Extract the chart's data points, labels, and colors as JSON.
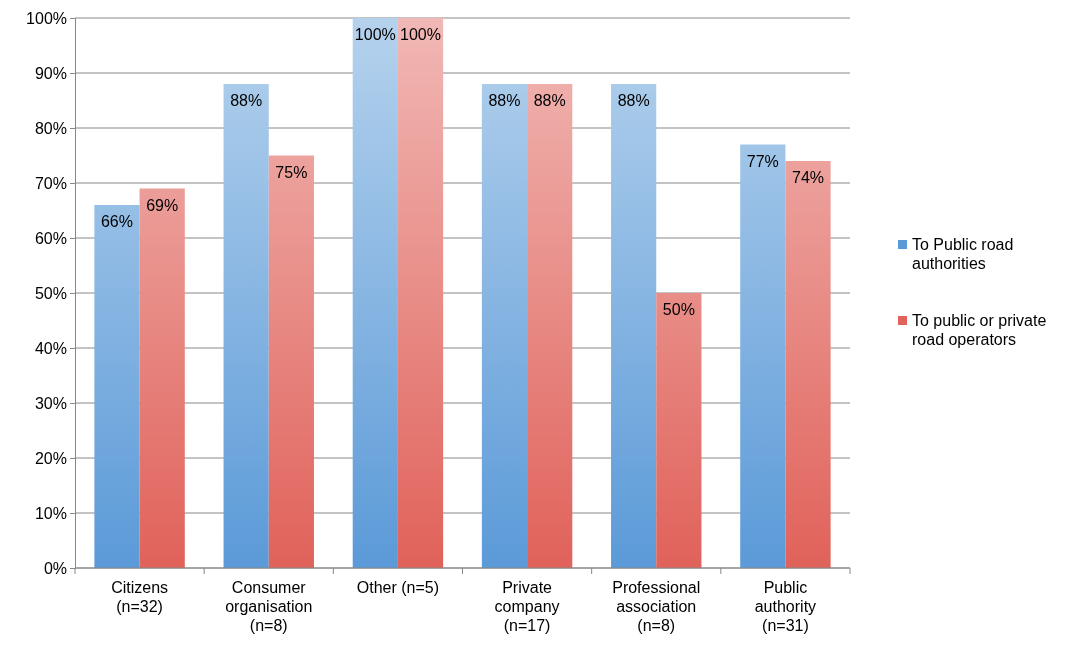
{
  "chart_data": {
    "type": "bar",
    "categories": [
      "Citizens (n=32)",
      "Consumer organisation (n=8)",
      "Other (n=5)",
      "Private company (n=17)",
      "Professional association (n=8)",
      "Public authority (n=31)"
    ],
    "series": [
      {
        "name": "To Public road authorities",
        "color": "#5b9ad8",
        "values": [
          66,
          88,
          100,
          88,
          88,
          77
        ],
        "value_labels": [
          "66%",
          "88%",
          "100%",
          "88%",
          "88%",
          "77%"
        ]
      },
      {
        "name": "To public or private road operators",
        "color": "#e0625a",
        "values": [
          69,
          75,
          100,
          88,
          50,
          74
        ],
        "value_labels": [
          "69%",
          "75%",
          "100%",
          "88%",
          "50%",
          "74%"
        ]
      }
    ],
    "ylim": [
      0,
      100
    ],
    "yticks": [
      {
        "value": 0,
        "label": "0%"
      },
      {
        "value": 10,
        "label": "10%"
      },
      {
        "value": 20,
        "label": "20%"
      },
      {
        "value": 30,
        "label": "30%"
      },
      {
        "value": 40,
        "label": "40%"
      },
      {
        "value": 50,
        "label": "50%"
      },
      {
        "value": 60,
        "label": "60%"
      },
      {
        "value": 70,
        "label": "70%"
      },
      {
        "value": 80,
        "label": "80%"
      },
      {
        "value": 90,
        "label": "90%"
      },
      {
        "value": 100,
        "label": "100%"
      }
    ],
    "grid": "y",
    "legend": "right"
  }
}
